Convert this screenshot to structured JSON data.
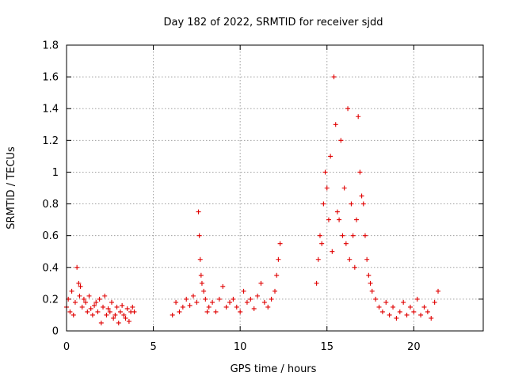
{
  "chart_data": {
    "type": "scatter",
    "title": "Day 182 of 2022, SRMTID for receiver sjdd",
    "xlabel": "GPS time / hours",
    "ylabel": "SRMTID / TECUs",
    "xlim": [
      0,
      24
    ],
    "ylim": [
      0,
      1.8
    ],
    "x_ticks": [
      0,
      5,
      10,
      15,
      20
    ],
    "x_tick_labels": [
      "0",
      "5",
      "10",
      "15",
      "20"
    ],
    "y_ticks": [
      0,
      0.2,
      0.4,
      0.6,
      0.8,
      1.0,
      1.2,
      1.4,
      1.6,
      1.8
    ],
    "y_tick_labels": [
      "0",
      "0.2",
      "0.4",
      "0.6",
      "0.8",
      "1",
      "1.2",
      "1.4",
      "1.6",
      "1.8"
    ],
    "grid": true,
    "marker": "+",
    "series": [
      {
        "name": "SRMTID",
        "color": "#e00000",
        "x": [
          0.0,
          0.1,
          0.2,
          0.3,
          0.4,
          0.5,
          0.6,
          0.7,
          0.75,
          0.8,
          0.9,
          1.0,
          1.1,
          1.2,
          1.3,
          1.4,
          1.5,
          1.6,
          1.7,
          1.8,
          1.9,
          2.0,
          2.1,
          2.2,
          2.3,
          2.4,
          2.5,
          2.6,
          2.7,
          2.8,
          2.9,
          3.0,
          3.1,
          3.2,
          3.3,
          3.4,
          3.5,
          3.6,
          3.7,
          3.8,
          3.9,
          6.1,
          6.3,
          6.5,
          6.7,
          6.9,
          7.1,
          7.3,
          7.5,
          7.6,
          7.65,
          7.7,
          7.75,
          7.8,
          7.9,
          8.0,
          8.1,
          8.2,
          8.4,
          8.6,
          8.8,
          9.0,
          9.2,
          9.4,
          9.6,
          9.8,
          10.0,
          10.2,
          10.4,
          10.6,
          10.8,
          11.0,
          11.2,
          11.4,
          11.6,
          11.8,
          12.0,
          12.1,
          12.2,
          12.3,
          14.4,
          14.5,
          14.6,
          14.7,
          14.8,
          14.9,
          15.0,
          15.1,
          15.2,
          15.3,
          15.4,
          15.5,
          15.6,
          15.7,
          15.8,
          15.9,
          16.0,
          16.1,
          16.2,
          16.3,
          16.4,
          16.5,
          16.6,
          16.7,
          16.8,
          16.9,
          17.0,
          17.1,
          17.2,
          17.3,
          17.4,
          17.5,
          17.6,
          17.8,
          18.0,
          18.2,
          18.4,
          18.6,
          18.8,
          19.0,
          19.2,
          19.4,
          19.6,
          19.8,
          20.0,
          20.2,
          20.4,
          20.6,
          20.8,
          21.0,
          21.2,
          21.4
        ],
        "y": [
          0.15,
          0.2,
          0.12,
          0.25,
          0.1,
          0.18,
          0.4,
          0.3,
          0.22,
          0.28,
          0.15,
          0.2,
          0.18,
          0.12,
          0.22,
          0.14,
          0.1,
          0.16,
          0.18,
          0.12,
          0.2,
          0.05,
          0.15,
          0.22,
          0.1,
          0.14,
          0.12,
          0.18,
          0.08,
          0.1,
          0.15,
          0.05,
          0.12,
          0.16,
          0.1,
          0.08,
          0.14,
          0.06,
          0.12,
          0.15,
          0.12,
          0.1,
          0.18,
          0.12,
          0.15,
          0.2,
          0.16,
          0.22,
          0.18,
          0.75,
          0.6,
          0.45,
          0.35,
          0.3,
          0.25,
          0.2,
          0.12,
          0.15,
          0.18,
          0.12,
          0.2,
          0.28,
          0.15,
          0.18,
          0.2,
          0.15,
          0.12,
          0.25,
          0.18,
          0.2,
          0.14,
          0.22,
          0.3,
          0.18,
          0.15,
          0.2,
          0.25,
          0.35,
          0.45,
          0.55,
          0.3,
          0.45,
          0.6,
          0.55,
          0.8,
          1.0,
          0.9,
          0.7,
          1.1,
          0.5,
          1.6,
          1.3,
          0.75,
          0.7,
          1.2,
          0.6,
          0.9,
          0.55,
          1.4,
          0.45,
          0.8,
          0.6,
          0.4,
          0.7,
          1.35,
          1.0,
          0.85,
          0.8,
          0.6,
          0.45,
          0.35,
          0.3,
          0.25,
          0.2,
          0.15,
          0.12,
          0.18,
          0.1,
          0.15,
          0.08,
          0.12,
          0.18,
          0.1,
          0.15,
          0.12,
          0.2,
          0.1,
          0.15,
          0.12,
          0.08,
          0.18,
          0.25
        ]
      }
    ]
  }
}
